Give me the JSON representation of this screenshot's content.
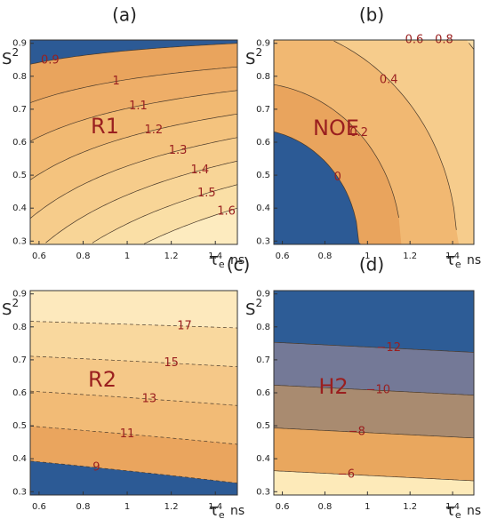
{
  "chart_data": [
    {
      "type": "contour",
      "title": "(a)",
      "label": "R1",
      "values": [
        0.9,
        1,
        1.1,
        1.2,
        1.3,
        1.4,
        1.5,
        1.6
      ],
      "colors": [
        "#2c5a95",
        "#e9a45d",
        "#eeae68",
        "#f1b972",
        "#f4c37e",
        "#f6cc8b",
        "#f8d597",
        "#fadfa6",
        "#fdebbf"
      ],
      "line_style": "solid",
      "xlim": [
        0.56,
        1.5
      ],
      "ylim": [
        0.29,
        0.91
      ],
      "xticks": [
        0.6,
        0.8,
        1,
        1.2,
        1.4
      ],
      "yticks": [
        0.3,
        0.4,
        0.5,
        0.6,
        0.7,
        0.8,
        0.9
      ],
      "x_label": "τ",
      "x_label_sub": "e",
      "x_unit": "ns",
      "y_label": "S",
      "y_label_sup": "2"
    },
    {
      "type": "contour",
      "title": "(b)",
      "label": "NOE",
      "values": [
        0,
        0.2,
        0.4,
        0.6,
        0.8
      ],
      "colors": [
        "#2c5a95",
        "#e9a45d",
        "#f1b872",
        "#f6cc8c",
        "#fadda6",
        "#fdecc0"
      ],
      "line_style": "solid",
      "xlim": [
        0.56,
        1.5
      ],
      "ylim": [
        0.29,
        0.91
      ],
      "xticks": [
        0.6,
        0.8,
        1,
        1.2,
        1.4
      ],
      "yticks": [
        0.3,
        0.4,
        0.5,
        0.6,
        0.7,
        0.8,
        0.9
      ],
      "x_label": "τ",
      "x_label_sub": "e",
      "x_unit": "ns",
      "y_label": "S",
      "y_label_sup": "2"
    },
    {
      "type": "contour",
      "title": "(c)",
      "label": "R2",
      "values": [
        9,
        11,
        13,
        15,
        17
      ],
      "colors": [
        "#2c5a95",
        "#eaa55e",
        "#f2bb76",
        "#f5c888",
        "#f9d89e",
        "#fde9bd"
      ],
      "line_style": "dashed",
      "xlim": [
        0.56,
        1.5
      ],
      "ylim": [
        0.29,
        0.91
      ],
      "xticks": [
        0.6,
        0.8,
        1,
        1.2,
        1.4
      ],
      "yticks": [
        0.3,
        0.4,
        0.5,
        0.6,
        0.7,
        0.8,
        0.9
      ],
      "x_label": "τ",
      "x_label_sub": "e",
      "x_unit": "ns",
      "y_label": "S",
      "y_label_sup": "2"
    },
    {
      "type": "contour",
      "title": "(d)",
      "label": "H2",
      "values": [
        -12,
        -10,
        -8,
        -6
      ],
      "value_labels": [
        "−12",
        "−10",
        "−8",
        "−6"
      ],
      "colors": [
        "#2d5c96",
        "#747997",
        "#a98b70",
        "#e9a75e",
        "#fdeab9"
      ],
      "line_style": "solid",
      "xlim": [
        0.56,
        1.5
      ],
      "ylim": [
        0.29,
        0.91
      ],
      "xticks": [
        0.6,
        0.8,
        1,
        1.2,
        1.4
      ],
      "yticks": [
        0.3,
        0.4,
        0.5,
        0.6,
        0.7,
        0.8,
        0.9
      ],
      "x_label": "τ",
      "x_label_sub": "e",
      "x_unit": "ns",
      "y_label": "S",
      "y_label_sup": "2"
    }
  ]
}
